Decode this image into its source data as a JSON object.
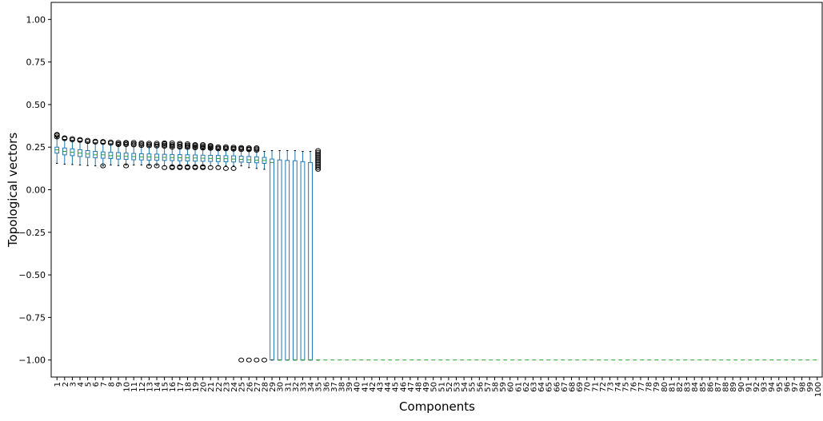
{
  "chart_data": {
    "type": "box",
    "title": "",
    "xlabel": "Components",
    "ylabel": "Topological vectors",
    "ylim": [
      -1.1,
      1.1
    ],
    "yticks": [
      -1.0,
      -0.75,
      -0.5,
      -0.25,
      0.0,
      0.25,
      0.5,
      0.75,
      1.0
    ],
    "ytick_labels": [
      "−1.00",
      "−0.75",
      "−0.50",
      "−0.25",
      "0.00",
      "0.25",
      "0.50",
      "0.75",
      "1.00"
    ],
    "categories": [
      "1",
      "2",
      "3",
      "4",
      "5",
      "6",
      "7",
      "8",
      "9",
      "10",
      "11",
      "12",
      "13",
      "14",
      "15",
      "16",
      "17",
      "18",
      "19",
      "20",
      "21",
      "22",
      "23",
      "24",
      "25",
      "26",
      "27",
      "28",
      "29",
      "30",
      "31",
      "32",
      "33",
      "34",
      "35",
      "36",
      "37",
      "38",
      "39",
      "40",
      "41",
      "42",
      "43",
      "44",
      "45",
      "46",
      "47",
      "48",
      "49",
      "50",
      "51",
      "52",
      "53",
      "54",
      "55",
      "56",
      "57",
      "58",
      "59",
      "60",
      "61",
      "62",
      "63",
      "64",
      "65",
      "66",
      "67",
      "68",
      "69",
      "70",
      "71",
      "72",
      "73",
      "74",
      "75",
      "76",
      "77",
      "78",
      "79",
      "80",
      "81",
      "82",
      "83",
      "84",
      "85",
      "86",
      "87",
      "88",
      "89",
      "90",
      "91",
      "92",
      "93",
      "94",
      "95",
      "96",
      "97",
      "98",
      "99",
      "100"
    ],
    "box_color": "#1f77b4",
    "median_color": "#2ca02c",
    "grid": false,
    "boxes": [
      {
        "q1": 0.215,
        "median": 0.235,
        "q3": 0.25,
        "wl": 0.155,
        "wh": 0.305,
        "fliers": [
          0.31,
          0.32,
          0.325
        ]
      },
      {
        "q1": 0.205,
        "median": 0.225,
        "q3": 0.245,
        "wl": 0.15,
        "wh": 0.295,
        "fliers": [
          0.3,
          0.305
        ]
      },
      {
        "q1": 0.2,
        "median": 0.22,
        "q3": 0.24,
        "wl": 0.148,
        "wh": 0.29,
        "fliers": [
          0.293,
          0.3
        ]
      },
      {
        "q1": 0.195,
        "median": 0.215,
        "q3": 0.235,
        "wl": 0.145,
        "wh": 0.285,
        "fliers": [
          0.29,
          0.295
        ]
      },
      {
        "q1": 0.19,
        "median": 0.21,
        "q3": 0.23,
        "wl": 0.142,
        "wh": 0.28,
        "fliers": [
          0.283,
          0.29
        ]
      },
      {
        "q1": 0.188,
        "median": 0.205,
        "q3": 0.225,
        "wl": 0.14,
        "wh": 0.275,
        "fliers": [
          0.28,
          0.285
        ]
      },
      {
        "q1": 0.185,
        "median": 0.205,
        "q3": 0.222,
        "wl": 0.14,
        "wh": 0.272,
        "fliers": [
          0.14,
          0.278,
          0.283
        ]
      },
      {
        "q1": 0.183,
        "median": 0.2,
        "q3": 0.22,
        "wl": 0.145,
        "wh": 0.27,
        "fliers": [
          0.273,
          0.28
        ]
      },
      {
        "q1": 0.18,
        "median": 0.198,
        "q3": 0.218,
        "wl": 0.142,
        "wh": 0.262,
        "fliers": [
          0.265,
          0.27,
          0.278
        ]
      },
      {
        "q1": 0.178,
        "median": 0.196,
        "q3": 0.215,
        "wl": 0.145,
        "wh": 0.26,
        "fliers": [
          0.14,
          0.265,
          0.272,
          0.278
        ]
      },
      {
        "q1": 0.176,
        "median": 0.195,
        "q3": 0.213,
        "wl": 0.145,
        "wh": 0.258,
        "fliers": [
          0.263,
          0.27,
          0.278
        ]
      },
      {
        "q1": 0.175,
        "median": 0.193,
        "q3": 0.211,
        "wl": 0.145,
        "wh": 0.255,
        "fliers": [
          0.26,
          0.268,
          0.275
        ]
      },
      {
        "q1": 0.174,
        "median": 0.192,
        "q3": 0.21,
        "wl": 0.143,
        "wh": 0.255,
        "fliers": [
          0.138,
          0.258,
          0.265,
          0.273
        ]
      },
      {
        "q1": 0.173,
        "median": 0.19,
        "q3": 0.209,
        "wl": 0.143,
        "wh": 0.252,
        "fliers": [
          0.14,
          0.257,
          0.265,
          0.273
        ]
      },
      {
        "q1": 0.172,
        "median": 0.19,
        "q3": 0.208,
        "wl": 0.14,
        "wh": 0.25,
        "fliers": [
          0.13,
          0.255,
          0.262,
          0.27,
          0.275
        ]
      },
      {
        "q1": 0.171,
        "median": 0.189,
        "q3": 0.207,
        "wl": 0.14,
        "wh": 0.248,
        "fliers": [
          0.13,
          0.135,
          0.25,
          0.258,
          0.265,
          0.275
        ]
      },
      {
        "q1": 0.17,
        "median": 0.188,
        "q3": 0.206,
        "wl": 0.14,
        "wh": 0.246,
        "fliers": [
          0.13,
          0.135,
          0.25,
          0.256,
          0.265,
          0.272
        ]
      },
      {
        "q1": 0.169,
        "median": 0.187,
        "q3": 0.205,
        "wl": 0.14,
        "wh": 0.245,
        "fliers": [
          0.13,
          0.135,
          0.248,
          0.255,
          0.262,
          0.27
        ]
      },
      {
        "q1": 0.168,
        "median": 0.186,
        "q3": 0.204,
        "wl": 0.14,
        "wh": 0.243,
        "fliers": [
          0.13,
          0.135,
          0.246,
          0.252,
          0.26,
          0.265
        ]
      },
      {
        "q1": 0.167,
        "median": 0.185,
        "q3": 0.203,
        "wl": 0.14,
        "wh": 0.242,
        "fliers": [
          0.13,
          0.135,
          0.245,
          0.25,
          0.258,
          0.265
        ]
      },
      {
        "q1": 0.166,
        "median": 0.184,
        "q3": 0.202,
        "wl": 0.14,
        "wh": 0.24,
        "fliers": [
          0.13,
          0.243,
          0.248,
          0.255,
          0.26
        ]
      },
      {
        "q1": 0.165,
        "median": 0.183,
        "q3": 0.201,
        "wl": 0.14,
        "wh": 0.238,
        "fliers": [
          0.13,
          0.24,
          0.245,
          0.252
        ]
      },
      {
        "q1": 0.164,
        "median": 0.182,
        "q3": 0.2,
        "wl": 0.14,
        "wh": 0.236,
        "fliers": [
          0.125,
          0.24,
          0.245,
          0.252
        ]
      },
      {
        "q1": 0.163,
        "median": 0.18,
        "q3": 0.199,
        "wl": 0.14,
        "wh": 0.234,
        "fliers": [
          0.125,
          0.238,
          0.243,
          0.25
        ]
      },
      {
        "q1": 0.162,
        "median": 0.178,
        "q3": 0.197,
        "wl": 0.14,
        "wh": 0.232,
        "fliers": [
          -1.0,
          0.236,
          0.242,
          0.248
        ]
      },
      {
        "q1": 0.16,
        "median": 0.176,
        "q3": 0.195,
        "wl": 0.13,
        "wh": 0.23,
        "fliers": [
          -1.0,
          0.235,
          0.24,
          0.246
        ]
      },
      {
        "q1": 0.158,
        "median": 0.174,
        "q3": 0.193,
        "wl": 0.125,
        "wh": 0.228,
        "fliers": [
          -1.0,
          0.232,
          0.24,
          0.246
        ]
      },
      {
        "q1": 0.155,
        "median": 0.172,
        "q3": 0.19,
        "wl": 0.12,
        "wh": 0.225,
        "fliers": [
          -1.0
        ]
      },
      {
        "q1": -1.0,
        "median": 0.16,
        "q3": 0.18,
        "wl": -1.0,
        "wh": 0.23,
        "fliers": []
      },
      {
        "q1": -1.0,
        "median": -1.0,
        "q3": 0.175,
        "wl": -1.0,
        "wh": 0.23,
        "fliers": []
      },
      {
        "q1": -1.0,
        "median": -1.0,
        "q3": 0.172,
        "wl": -1.0,
        "wh": 0.23,
        "fliers": []
      },
      {
        "q1": -1.0,
        "median": -1.0,
        "q3": 0.17,
        "wl": -1.0,
        "wh": 0.23,
        "fliers": []
      },
      {
        "q1": -1.0,
        "median": -1.0,
        "q3": 0.165,
        "wl": -1.0,
        "wh": 0.225,
        "fliers": []
      },
      {
        "q1": -1.0,
        "median": -1.0,
        "q3": 0.16,
        "wl": -1.0,
        "wh": 0.225,
        "fliers": []
      },
      {
        "q1": -1.0,
        "median": -1.0,
        "q3": -1.0,
        "wl": -1.0,
        "wh": -1.0,
        "fliers": [
          0.12,
          0.13,
          0.14,
          0.15,
          0.16,
          0.17,
          0.18,
          0.19,
          0.2,
          0.21,
          0.22,
          0.23
        ]
      }
    ],
    "constant_value_from_component": 35,
    "constant_value": -1.0
  }
}
